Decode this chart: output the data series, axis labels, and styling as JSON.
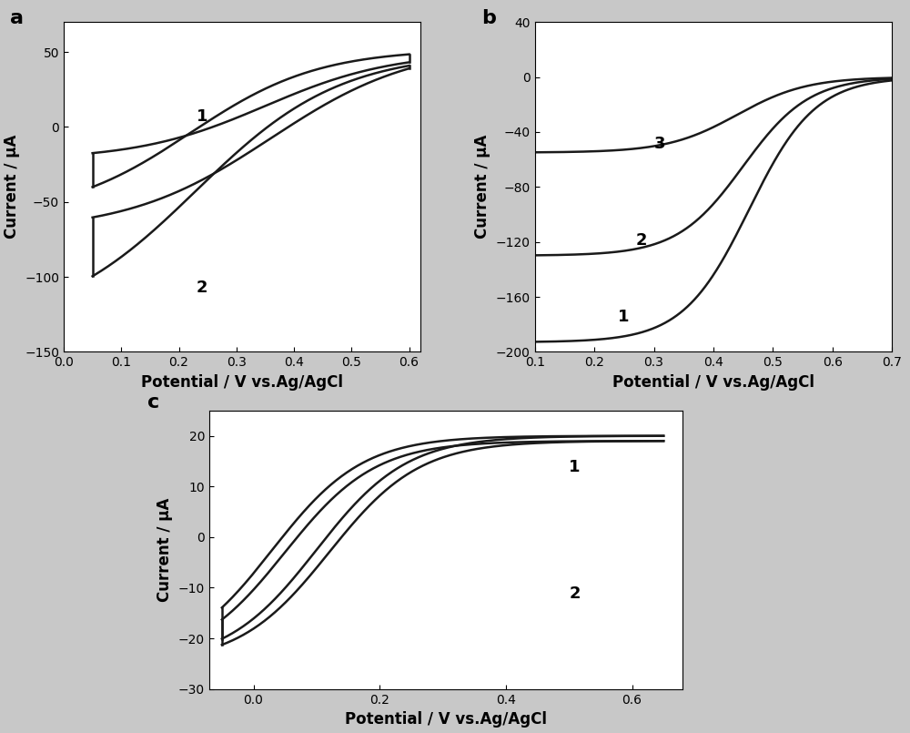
{
  "background_color": "#c8c8c8",
  "panel_bg": "#ffffff",
  "line_color": "#1a1a1a",
  "label_fontsize": 12,
  "tick_fontsize": 10,
  "panel_label_fontsize": 16,
  "panel_a": {
    "label": "a",
    "xlabel": "Potential / V vs.Ag/AgCl",
    "ylabel": "Current / μA",
    "xlim": [
      0.0,
      0.62
    ],
    "ylim": [
      -150,
      70
    ],
    "xticks": [
      0.0,
      0.1,
      0.2,
      0.3,
      0.4,
      0.5,
      0.6
    ],
    "yticks": [
      -150,
      -100,
      -50,
      0,
      50
    ]
  },
  "panel_b": {
    "label": "b",
    "xlabel": "Potential / V vs.Ag/AgCl",
    "ylabel": "Current / μA",
    "xlim": [
      0.1,
      0.7
    ],
    "ylim": [
      -200,
      40
    ],
    "xticks": [
      0.1,
      0.2,
      0.3,
      0.4,
      0.5,
      0.6,
      0.7
    ],
    "yticks": [
      -200,
      -160,
      -120,
      -80,
      -40,
      0,
      40
    ]
  },
  "panel_c": {
    "label": "c",
    "xlabel": "Potential / V vs.Ag/AgCl",
    "ylabel": "Current / μA",
    "xlim": [
      -0.07,
      0.68
    ],
    "ylim": [
      -30,
      25
    ],
    "xticks": [
      0.0,
      0.2,
      0.4,
      0.6
    ],
    "yticks": [
      -30,
      -20,
      -10,
      0,
      10,
      20
    ]
  }
}
